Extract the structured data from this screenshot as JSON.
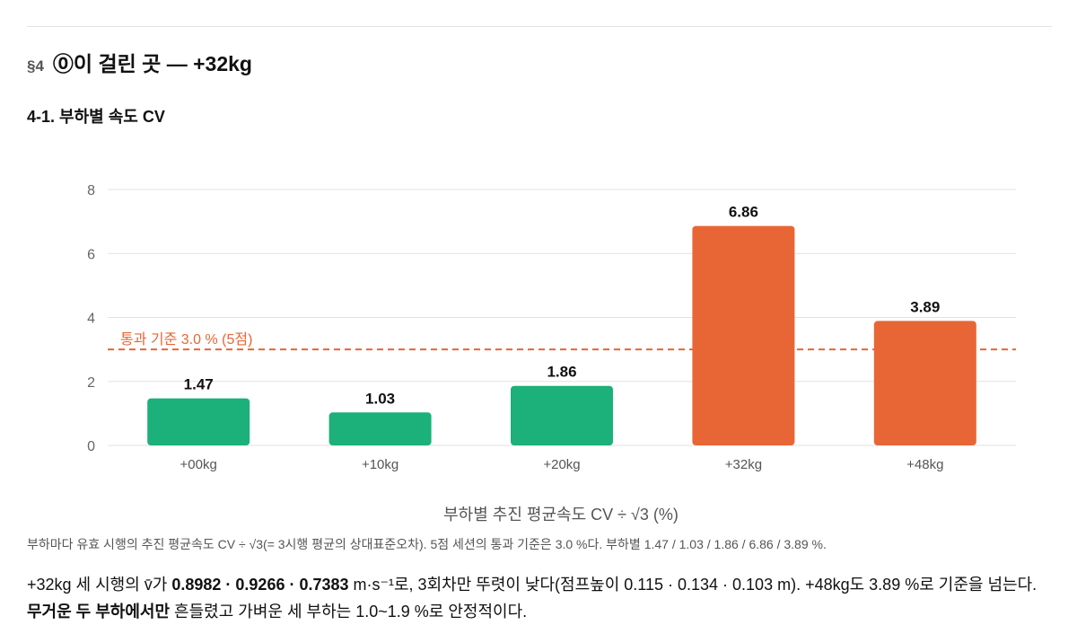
{
  "section": {
    "number": "§4",
    "title": "⓪이 걸린 곳 — +32kg"
  },
  "subsection": {
    "title": "4-1. 부하별 속도 CV"
  },
  "chart_data": {
    "type": "bar",
    "categories": [
      "+00kg",
      "+10kg",
      "+20kg",
      "+32kg",
      "+48kg"
    ],
    "values": [
      1.47,
      1.03,
      1.86,
      6.86,
      3.89
    ],
    "value_labels": [
      "1.47",
      "1.03",
      "1.86",
      "6.86",
      "3.89"
    ],
    "xlabel": "부하별 추진 평균속도 CV ÷ √3 (%)",
    "ylabel": "",
    "ylim": [
      0,
      8
    ],
    "yticks": [
      0,
      2,
      4,
      6,
      8
    ],
    "grid": true,
    "threshold": {
      "value": 3.0,
      "label": "통과 기준 3.0 % (5점)"
    },
    "colors": {
      "pass": "#1cb07a",
      "fail": "#e86636",
      "threshold": "#e86636",
      "grid": "#e2e2e2"
    }
  },
  "caption": "부하마다 유효 시행의 추진 평균속도 CV ÷ √3(= 3시행 평균의 상대표준오차). 5점 세션의 통과 기준은 3.0 %다. 부하별 1.47 / 1.03 / 1.86 / 6.86 / 3.89 %.",
  "body": {
    "p1": "+32kg 세 시행의 v̄가 ",
    "b1": "0.8982 · 0.9266 · 0.7383",
    "p2": " m·s⁻¹로, 3회차만 뚜렷이 낮다(점프높이 0.115 · 0.134 · 0.103 m). +48kg도 3.89 %로 기준을 넘는다. ",
    "b2": "무거운 두 부하에서만",
    "p3": " 흔들렸고 가벼운 세 부하는 1.0~1.9 %로 안정적이다."
  }
}
